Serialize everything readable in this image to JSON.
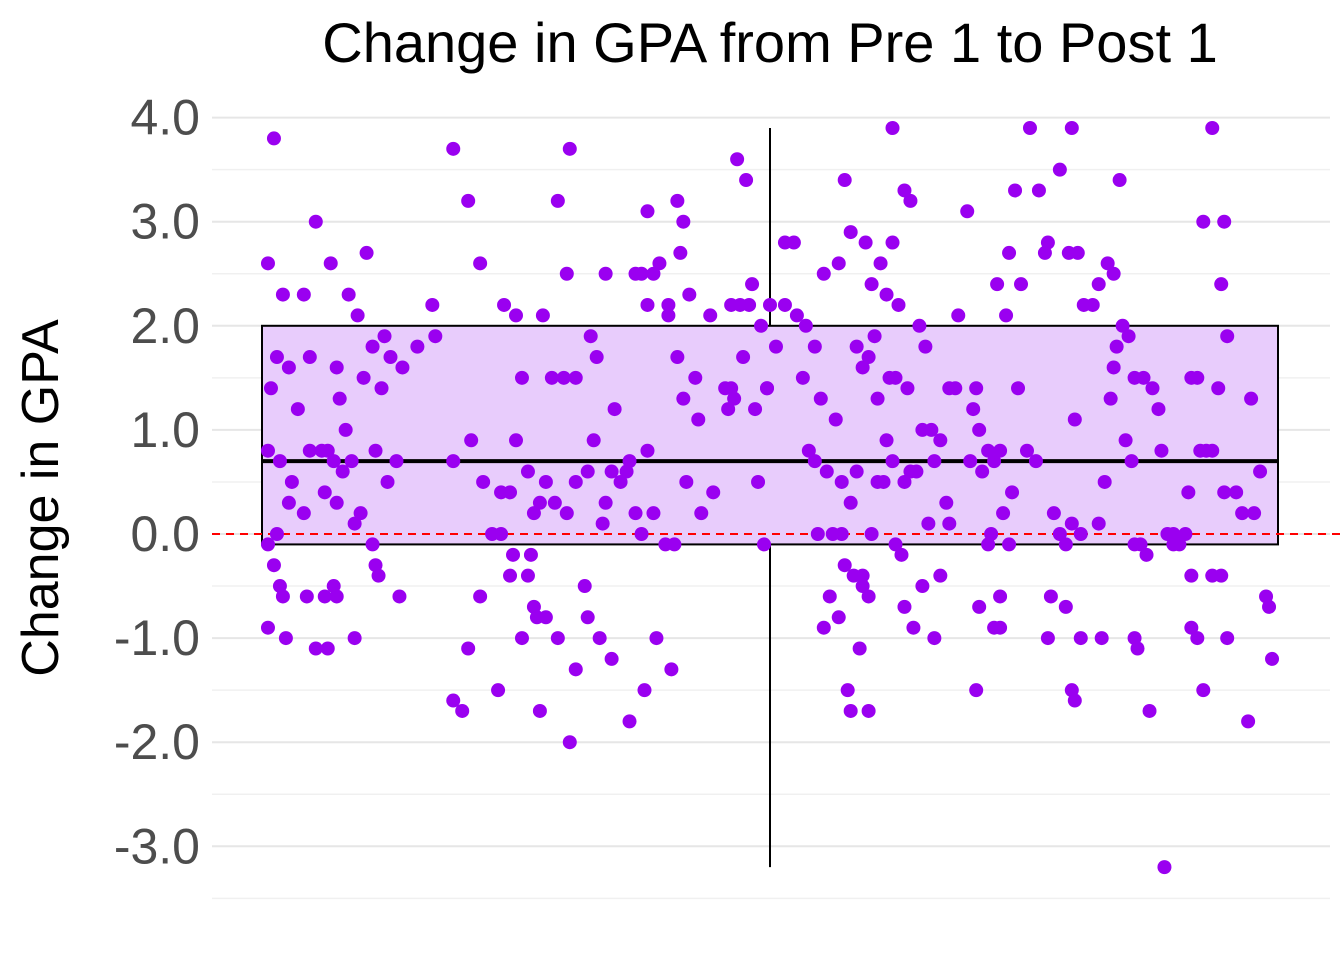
{
  "chart_data": {
    "type": "boxplot",
    "title": "Change in GPA from Pre 1 to Post 1",
    "ylabel": "Change in GPA",
    "xlabel": "",
    "ylim": [
      -3.5,
      4.1
    ],
    "yticks": [
      4.0,
      3.0,
      2.0,
      1.0,
      0.0,
      -1.0,
      -2.0,
      -3.0
    ],
    "ytick_labels": [
      "4.0",
      "3.0",
      "2.0",
      "1.0",
      "0.0",
      "-1.0",
      "-2.0",
      "-3.0"
    ],
    "grid": true,
    "reference_line": {
      "y": 0.0,
      "style": "dashed",
      "color": "#ff0000"
    },
    "box": {
      "min": -3.2,
      "q1": -0.1,
      "median": 0.7,
      "q3": 2.0,
      "max": 3.9,
      "fill": "#e8ccfc",
      "stroke": "#000000"
    },
    "points_color": "#9a00f0",
    "points": [
      [
        0.19,
        3.8
      ],
      [
        0.17,
        2.6
      ],
      [
        0.22,
        2.3
      ],
      [
        0.29,
        2.3
      ],
      [
        0.33,
        3.0
      ],
      [
        0.38,
        2.6
      ],
      [
        0.44,
        2.3
      ],
      [
        0.5,
        2.7
      ],
      [
        0.47,
        2.1
      ],
      [
        0.4,
        1.6
      ],
      [
        0.31,
        1.7
      ],
      [
        0.2,
        1.7
      ],
      [
        0.24,
        1.6
      ],
      [
        0.27,
        1.2
      ],
      [
        0.18,
        1.4
      ],
      [
        0.41,
        1.3
      ],
      [
        0.43,
        1.0
      ],
      [
        0.49,
        1.5
      ],
      [
        0.52,
        1.8
      ],
      [
        0.55,
        1.4
      ],
      [
        0.58,
        1.7
      ],
      [
        0.62,
        1.6
      ],
      [
        0.35,
        0.8
      ],
      [
        0.31,
        0.8
      ],
      [
        0.37,
        0.8
      ],
      [
        0.45,
        0.7
      ],
      [
        0.39,
        0.7
      ],
      [
        0.42,
        0.6
      ],
      [
        0.21,
        0.7
      ],
      [
        0.17,
        0.8
      ],
      [
        0.25,
        0.5
      ],
      [
        0.24,
        0.3
      ],
      [
        0.29,
        0.2
      ],
      [
        0.36,
        0.4
      ],
      [
        0.4,
        0.3
      ],
      [
        0.46,
        0.1
      ],
      [
        0.48,
        0.2
      ],
      [
        0.53,
        0.8
      ],
      [
        0.57,
        0.5
      ],
      [
        0.6,
        0.7
      ],
      [
        0.2,
        0.0
      ],
      [
        0.17,
        -0.1
      ],
      [
        0.19,
        -0.3
      ],
      [
        0.21,
        -0.5
      ],
      [
        0.22,
        -0.6
      ],
      [
        0.3,
        -0.6
      ],
      [
        0.36,
        -0.6
      ],
      [
        0.4,
        -0.6
      ],
      [
        0.39,
        -0.5
      ],
      [
        0.52,
        -0.1
      ],
      [
        0.53,
        -0.3
      ],
      [
        0.54,
        -0.4
      ],
      [
        0.61,
        -0.6
      ],
      [
        0.17,
        -0.9
      ],
      [
        0.23,
        -1.0
      ],
      [
        0.33,
        -1.1
      ],
      [
        0.37,
        -1.1
      ],
      [
        0.46,
        -1.0
      ],
      [
        0.56,
        1.9
      ],
      [
        0.67,
        1.8
      ],
      [
        0.73,
        1.9
      ],
      [
        0.72,
        2.2
      ],
      [
        0.79,
        3.7
      ],
      [
        0.84,
        3.2
      ],
      [
        0.88,
        2.6
      ],
      [
        0.96,
        2.2
      ],
      [
        1.0,
        2.1
      ],
      [
        1.02,
        1.5
      ],
      [
        0.85,
        0.9
      ],
      [
        0.79,
        0.7
      ],
      [
        0.89,
        0.5
      ],
      [
        0.95,
        0.4
      ],
      [
        0.98,
        0.4
      ],
      [
        1.0,
        0.9
      ],
      [
        1.04,
        0.6
      ],
      [
        1.08,
        0.3
      ],
      [
        1.06,
        0.2
      ],
      [
        1.1,
        0.5
      ],
      [
        0.92,
        0.0
      ],
      [
        0.95,
        0.0
      ],
      [
        0.99,
        -0.2
      ],
      [
        1.05,
        -0.2
      ],
      [
        0.98,
        -0.4
      ],
      [
        1.04,
        -0.4
      ],
      [
        0.88,
        -0.6
      ],
      [
        0.84,
        -1.1
      ],
      [
        0.79,
        -1.6
      ],
      [
        0.82,
        -1.7
      ],
      [
        0.94,
        -1.5
      ],
      [
        1.02,
        -1.0
      ],
      [
        1.06,
        -0.7
      ],
      [
        1.07,
        -0.8
      ],
      [
        1.1,
        -0.8
      ],
      [
        1.14,
        -1.0
      ],
      [
        1.2,
        -1.3
      ],
      [
        1.08,
        -1.7
      ],
      [
        1.18,
        -2.0
      ],
      [
        1.12,
        1.5
      ],
      [
        1.16,
        1.5
      ],
      [
        1.2,
        1.5
      ],
      [
        1.09,
        2.1
      ],
      [
        1.14,
        3.2
      ],
      [
        1.18,
        3.7
      ],
      [
        1.17,
        2.5
      ],
      [
        1.25,
        1.9
      ],
      [
        1.27,
        1.7
      ],
      [
        1.26,
        0.9
      ],
      [
        1.24,
        0.6
      ],
      [
        1.3,
        0.3
      ],
      [
        1.32,
        0.6
      ],
      [
        1.35,
        0.5
      ],
      [
        1.17,
        0.2
      ],
      [
        1.13,
        0.3
      ],
      [
        1.2,
        0.5
      ],
      [
        1.29,
        0.1
      ],
      [
        1.37,
        0.6
      ],
      [
        1.38,
        0.7
      ],
      [
        1.4,
        0.2
      ],
      [
        1.23,
        -0.5
      ],
      [
        1.24,
        -0.8
      ],
      [
        1.28,
        -1.0
      ],
      [
        1.32,
        -1.2
      ],
      [
        1.3,
        2.5
      ],
      [
        1.33,
        1.2
      ],
      [
        1.4,
        2.5
      ],
      [
        1.42,
        2.5
      ],
      [
        1.44,
        2.2
      ],
      [
        1.46,
        2.5
      ],
      [
        1.48,
        2.6
      ],
      [
        1.51,
        2.2
      ],
      [
        1.54,
        1.7
      ],
      [
        1.55,
        2.7
      ],
      [
        1.51,
        2.1
      ],
      [
        1.58,
        2.3
      ],
      [
        1.6,
        1.5
      ],
      [
        1.56,
        1.3
      ],
      [
        1.61,
        1.1
      ],
      [
        1.44,
        0.8
      ],
      [
        1.42,
        0.0
      ],
      [
        1.46,
        0.2
      ],
      [
        1.5,
        -0.1
      ],
      [
        1.53,
        -0.1
      ],
      [
        1.57,
        0.5
      ],
      [
        1.62,
        0.2
      ],
      [
        1.66,
        0.4
      ],
      [
        1.7,
        1.4
      ],
      [
        1.73,
        1.3
      ],
      [
        1.65,
        2.1
      ],
      [
        1.54,
        3.2
      ],
      [
        1.56,
        3.0
      ],
      [
        1.44,
        3.1
      ],
      [
        1.47,
        -1.0
      ],
      [
        1.43,
        -1.5
      ],
      [
        1.38,
        -1.8
      ],
      [
        1.52,
        -1.3
      ],
      [
        1.72,
        2.2
      ],
      [
        1.75,
        2.2
      ],
      [
        1.78,
        2.2
      ],
      [
        1.8,
        1.2
      ],
      [
        1.74,
        3.6
      ],
      [
        1.77,
        3.4
      ],
      [
        1.79,
        2.4
      ],
      [
        1.76,
        1.7
      ],
      [
        1.72,
        1.4
      ],
      [
        1.71,
        1.2
      ],
      [
        1.84,
        1.4
      ],
      [
        1.81,
        0.5
      ],
      [
        1.83,
        -0.1
      ],
      [
        1.84,
        1.4
      ],
      [
        1.87,
        1.8
      ],
      [
        1.9,
        2.8
      ],
      [
        1.93,
        2.8
      ],
      [
        1.97,
        2.0
      ],
      [
        2.0,
        1.8
      ],
      [
        2.02,
        1.3
      ],
      [
        2.0,
        0.7
      ],
      [
        2.01,
        0.0
      ],
      [
        1.98,
        0.8
      ],
      [
        1.96,
        1.5
      ],
      [
        1.94,
        2.1
      ],
      [
        1.85,
        2.2
      ],
      [
        1.9,
        2.2
      ],
      [
        1.82,
        2.0
      ],
      [
        2.03,
        2.5
      ],
      [
        2.08,
        2.6
      ],
      [
        2.12,
        2.9
      ],
      [
        2.14,
        1.8
      ],
      [
        2.16,
        1.6
      ],
      [
        2.18,
        1.7
      ],
      [
        2.07,
        1.1
      ],
      [
        2.04,
        0.6
      ],
      [
        2.09,
        0.5
      ],
      [
        2.12,
        0.3
      ],
      [
        2.06,
        0.0
      ],
      [
        2.09,
        0.0
      ],
      [
        2.05,
        -0.6
      ],
      [
        2.03,
        -0.9
      ],
      [
        2.1,
        -0.3
      ],
      [
        2.13,
        -0.4
      ],
      [
        2.14,
        0.6
      ],
      [
        2.08,
        -0.8
      ],
      [
        2.11,
        -1.5
      ],
      [
        2.12,
        -1.7
      ],
      [
        2.15,
        -1.1
      ],
      [
        2.16,
        -0.5
      ],
      [
        2.16,
        -0.4
      ],
      [
        2.18,
        -1.7
      ],
      [
        2.1,
        3.4
      ],
      [
        2.17,
        2.8
      ],
      [
        2.19,
        2.4
      ],
      [
        2.22,
        2.6
      ],
      [
        2.24,
        2.3
      ],
      [
        2.26,
        2.8
      ],
      [
        2.28,
        2.2
      ],
      [
        2.2,
        1.9
      ],
      [
        2.21,
        1.3
      ],
      [
        2.24,
        0.9
      ],
      [
        2.25,
        1.5
      ],
      [
        2.27,
        1.5
      ],
      [
        2.26,
        0.7
      ],
      [
        2.21,
        0.5
      ],
      [
        2.23,
        0.5
      ],
      [
        2.3,
        0.5
      ],
      [
        2.32,
        0.6
      ],
      [
        2.34,
        0.6
      ],
      [
        2.19,
        0.0
      ],
      [
        2.18,
        -0.6
      ],
      [
        2.27,
        -0.1
      ],
      [
        2.29,
        -0.2
      ],
      [
        2.3,
        -0.7
      ],
      [
        2.33,
        -0.9
      ],
      [
        2.26,
        3.9
      ],
      [
        2.3,
        3.3
      ],
      [
        2.32,
        3.2
      ],
      [
        2.35,
        2.0
      ],
      [
        2.37,
        1.8
      ],
      [
        2.31,
        1.4
      ],
      [
        2.36,
        1.0
      ],
      [
        2.4,
        0.7
      ],
      [
        2.39,
        1.0
      ],
      [
        2.42,
        0.9
      ],
      [
        2.44,
        0.3
      ],
      [
        2.45,
        0.1
      ],
      [
        2.38,
        0.1
      ],
      [
        2.42,
        -0.4
      ],
      [
        2.36,
        -0.5
      ],
      [
        2.4,
        -1.0
      ],
      [
        2.45,
        1.4
      ],
      [
        2.47,
        1.4
      ],
      [
        2.48,
        2.1
      ],
      [
        2.51,
        3.1
      ],
      [
        2.53,
        1.2
      ],
      [
        2.55,
        1.0
      ],
      [
        2.58,
        0.8
      ],
      [
        2.54,
        1.4
      ],
      [
        2.52,
        0.7
      ],
      [
        2.56,
        0.6
      ],
      [
        2.59,
        0.0
      ],
      [
        2.62,
        0.8
      ],
      [
        2.6,
        0.7
      ],
      [
        2.58,
        -0.1
      ],
      [
        2.65,
        -0.1
      ],
      [
        2.62,
        -0.6
      ],
      [
        2.55,
        -0.7
      ],
      [
        2.6,
        -0.9
      ],
      [
        2.62,
        -0.9
      ],
      [
        2.54,
        -1.5
      ],
      [
        2.61,
        2.4
      ],
      [
        2.64,
        2.1
      ],
      [
        2.65,
        2.7
      ],
      [
        2.67,
        3.3
      ],
      [
        2.69,
        2.4
      ],
      [
        2.68,
        1.4
      ],
      [
        2.71,
        0.8
      ],
      [
        2.66,
        0.4
      ],
      [
        2.63,
        0.2
      ],
      [
        2.72,
        3.9
      ],
      [
        2.75,
        3.3
      ],
      [
        2.78,
        2.8
      ],
      [
        2.77,
        2.7
      ],
      [
        2.74,
        0.7
      ],
      [
        2.8,
        0.2
      ],
      [
        2.82,
        0.0
      ],
      [
        2.84,
        -0.1
      ],
      [
        2.79,
        -0.6
      ],
      [
        2.78,
        -1.0
      ],
      [
        2.84,
        -0.7
      ],
      [
        2.86,
        -1.5
      ],
      [
        2.87,
        -1.6
      ],
      [
        2.89,
        -1.0
      ],
      [
        2.82,
        3.5
      ],
      [
        2.86,
        3.9
      ],
      [
        2.88,
        2.7
      ],
      [
        2.9,
        2.2
      ],
      [
        2.93,
        2.2
      ],
      [
        2.85,
        2.7
      ],
      [
        2.87,
        1.1
      ],
      [
        2.86,
        0.1
      ],
      [
        2.89,
        0.0
      ],
      [
        2.95,
        0.1
      ],
      [
        2.97,
        0.5
      ],
      [
        2.99,
        1.3
      ],
      [
        3.01,
        1.8
      ],
      [
        3.03,
        2.0
      ],
      [
        3.05,
        1.9
      ],
      [
        3.07,
        1.5
      ],
      [
        3.0,
        1.6
      ],
      [
        3.04,
        0.9
      ],
      [
        3.06,
        0.7
      ],
      [
        3.02,
        3.4
      ],
      [
        2.98,
        2.6
      ],
      [
        3.0,
        2.5
      ],
      [
        2.95,
        2.4
      ],
      [
        2.96,
        -1.0
      ],
      [
        3.07,
        -1.0
      ],
      [
        3.08,
        -1.1
      ],
      [
        3.09,
        -0.1
      ],
      [
        3.11,
        -0.2
      ],
      [
        3.12,
        -1.7
      ],
      [
        3.07,
        -0.1
      ],
      [
        3.1,
        1.5
      ],
      [
        3.13,
        1.4
      ],
      [
        3.15,
        1.2
      ],
      [
        3.16,
        0.8
      ],
      [
        3.18,
        0.0
      ],
      [
        3.17,
        -3.2
      ],
      [
        3.2,
        0.0
      ],
      [
        3.22,
        -0.1
      ],
      [
        3.24,
        0.0
      ],
      [
        3.25,
        0.4
      ],
      [
        3.26,
        1.5
      ],
      [
        3.28,
        1.5
      ],
      [
        3.29,
        0.8
      ],
      [
        3.31,
        0.8
      ],
      [
        3.33,
        0.8
      ],
      [
        3.35,
        1.4
      ],
      [
        3.3,
        3.0
      ],
      [
        3.33,
        3.9
      ],
      [
        3.37,
        3.0
      ],
      [
        3.36,
        2.4
      ],
      [
        3.38,
        1.9
      ],
      [
        3.37,
        0.4
      ],
      [
        3.41,
        0.4
      ],
      [
        3.43,
        0.2
      ],
      [
        3.47,
        0.2
      ],
      [
        3.46,
        1.3
      ],
      [
        3.49,
        0.6
      ],
      [
        3.26,
        -0.4
      ],
      [
        3.33,
        -0.4
      ],
      [
        3.36,
        -0.4
      ],
      [
        3.26,
        -0.9
      ],
      [
        3.28,
        -1.0
      ],
      [
        3.3,
        -1.5
      ],
      [
        3.38,
        -1.0
      ],
      [
        3.45,
        -1.8
      ],
      [
        3.51,
        -0.6
      ],
      [
        3.52,
        -0.7
      ],
      [
        3.53,
        -1.2
      ],
      [
        3.2,
        -0.1
      ]
    ]
  }
}
